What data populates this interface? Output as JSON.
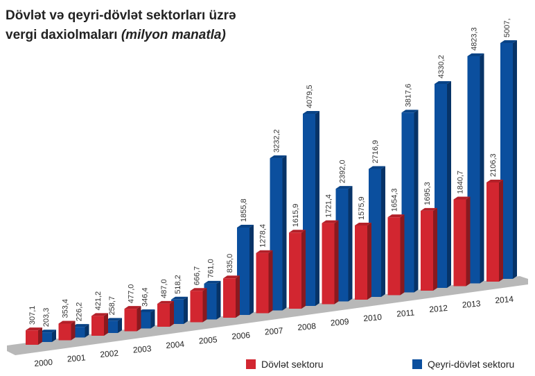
{
  "chart_data": {
    "type": "bar",
    "title": [
      "Dövlət və qeyri-dövlət sektorları üzrə",
      "vergi daxiolmaları"
    ],
    "unit": "(milyon manatla)",
    "categories": [
      "2000",
      "2001",
      "2002",
      "2003",
      "2004",
      "2005",
      "2006",
      "2007",
      "2008",
      "2009",
      "2010",
      "2011",
      "2012",
      "2013",
      "2014"
    ],
    "series": [
      {
        "name": "Dövlət sektoru",
        "color": "#d22630",
        "values": [
          307.1,
          353.4,
          421.2,
          477.0,
          487.0,
          666.7,
          835.0,
          1278.4,
          1615.9,
          1721.4,
          1575.9,
          1654.3,
          1695.3,
          1840.7,
          2106.3
        ],
        "value_labels": [
          "307,1",
          "353,4",
          "421,2",
          "477,0",
          "487,0",
          "666,7",
          "835,0",
          "1278,4",
          "1615,9",
          "1721,4",
          "1575,9",
          "1654,3",
          "1695,3",
          "1840,7",
          "2106,3"
        ]
      },
      {
        "name": "Qeyri-dövlət sektoru",
        "color": "#0b4f9e",
        "values": [
          203.3,
          226.2,
          258.7,
          346.4,
          518.2,
          761.0,
          1855.8,
          3232.2,
          4079.5,
          2392.0,
          2716.9,
          3817.6,
          4330.2,
          4823.3,
          5007
        ],
        "value_labels": [
          "203,3",
          "226,2",
          "258,7",
          "346,4",
          "518,2",
          "761,0",
          "1855,8",
          "3232,2",
          "4079,5",
          "2392,0",
          "2716,9",
          "3817,6",
          "4330,2",
          "4823,3",
          "5007,"
        ]
      }
    ]
  }
}
